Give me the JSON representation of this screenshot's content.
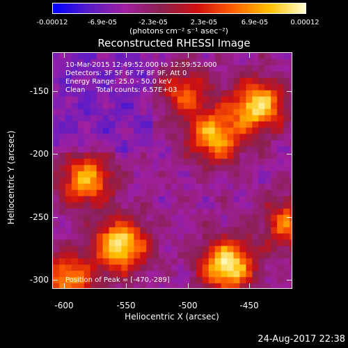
{
  "colorbar": {
    "tick_labels": [
      "-0.00012",
      "-6.9e-05",
      "-2.3e-05",
      "2.3e-05",
      "6.9e-05",
      "0.00012"
    ],
    "unit_label": "(photons cm⁻² s⁻¹ asec⁻²)",
    "colors": [
      "#0000ff",
      "#5a1cc8",
      "#a020a0",
      "#8a2050",
      "#d01010",
      "#ff6000",
      "#ffc000",
      "#ffffd0"
    ]
  },
  "chart_data": {
    "type": "heatmap",
    "title": "Reconstructed RHESSI Image",
    "xlabel": "Heliocentric X (arcsec)",
    "ylabel": "Heliocentric Y (arcsec)",
    "xlim": [
      -610,
      -415
    ],
    "ylim": [
      -310,
      -120
    ],
    "xticks": [
      "-600",
      "-550",
      "-500",
      "-450"
    ],
    "yticks": [
      "-150",
      "-200",
      "-250",
      "-300"
    ],
    "color_range": [
      -0.00012,
      0.00012
    ],
    "sources": [
      {
        "x": -470,
        "y": -289,
        "intensity": 1.0
      },
      {
        "x": -557,
        "y": -273,
        "intensity": 0.95
      },
      {
        "x": -585,
        "y": -220,
        "intensity": 0.75
      },
      {
        "x": -445,
        "y": -160,
        "intensity": 0.9
      },
      {
        "x": -480,
        "y": -185,
        "intensity": 0.8
      },
      {
        "x": -600,
        "y": -300,
        "intensity": 0.7
      },
      {
        "x": -420,
        "y": -255,
        "intensity": 0.6
      },
      {
        "x": -505,
        "y": -150,
        "intensity": 0.5
      }
    ]
  },
  "info": {
    "line1": "10-Mar-2015 12:49:52.000 to 12:59:52.000",
    "line2": "Detectors: 3F 5F 6F 7F 8F 9F, Att 0",
    "line3": "Energy Range: 25.0 - 50.0 keV",
    "line4": "Clean     Total counts: 6.57E+03"
  },
  "peak_label": "Position of Peak = [-470,-289]",
  "timestamp": "24-Aug-2017 22:38"
}
